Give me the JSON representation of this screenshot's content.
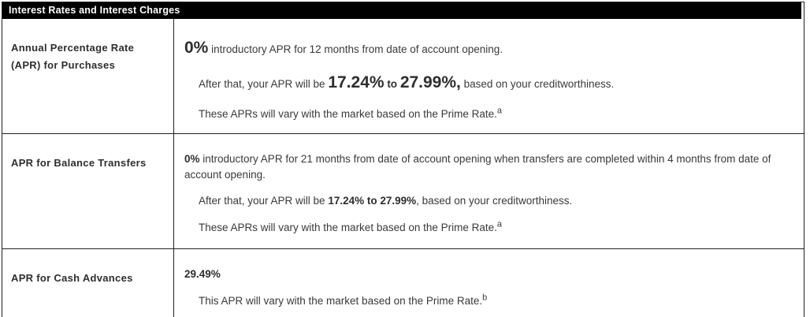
{
  "colors": {
    "header_bg": "#000000",
    "header_text": "#ffffff",
    "body_text": "#3a3a3a",
    "border": "#222222"
  },
  "table": {
    "title": "Interest Rates and Interest Charges",
    "rows": [
      {
        "label": "Annual Percentage Rate (APR) for Purchases",
        "paragraphs": [
          {
            "indent": false,
            "segments": [
              {
                "text": "0%",
                "style": "xl-bold"
              },
              {
                "text": " introductory APR for 12 months from date of account opening.",
                "style": "normal"
              }
            ]
          },
          {
            "indent": true,
            "segments": [
              {
                "text": "After that, your APR will be ",
                "style": "normal"
              },
              {
                "text": "17.24%",
                "style": "xl-bold"
              },
              {
                "text": " to ",
                "style": "bold"
              },
              {
                "text": "27.99%,",
                "style": "xl-bold"
              },
              {
                "text": " based on your creditworthiness.",
                "style": "normal"
              }
            ]
          },
          {
            "indent": true,
            "segments": [
              {
                "text": "These APRs will vary with the market based on the Prime Rate.",
                "style": "normal"
              },
              {
                "text": "a",
                "style": "sup"
              }
            ]
          }
        ]
      },
      {
        "label": "APR for Balance Transfers",
        "paragraphs": [
          {
            "indent": false,
            "segments": [
              {
                "text": "0%",
                "style": "bold"
              },
              {
                "text": " introductory APR for 21 months from date of account opening when transfers are completed within 4 months from date of account opening.",
                "style": "normal"
              }
            ]
          },
          {
            "indent": true,
            "segments": [
              {
                "text": "After that, your APR will be ",
                "style": "normal"
              },
              {
                "text": "17.24% to 27.99%",
                "style": "bold"
              },
              {
                "text": ", based on your creditworthiness.",
                "style": "normal"
              }
            ]
          },
          {
            "indent": true,
            "segments": [
              {
                "text": "These APRs will vary with the market based on the Prime Rate.",
                "style": "normal"
              },
              {
                "text": "a",
                "style": "sup"
              }
            ]
          }
        ]
      },
      {
        "label": "APR for Cash Advances",
        "paragraphs": [
          {
            "indent": false,
            "segments": [
              {
                "text": "29.49%",
                "style": "bold"
              }
            ]
          },
          {
            "indent": true,
            "segments": [
              {
                "text": "This APR will vary with the market based on the Prime Rate.",
                "style": "normal"
              },
              {
                "text": "b",
                "style": "sup"
              }
            ]
          }
        ]
      }
    ]
  }
}
